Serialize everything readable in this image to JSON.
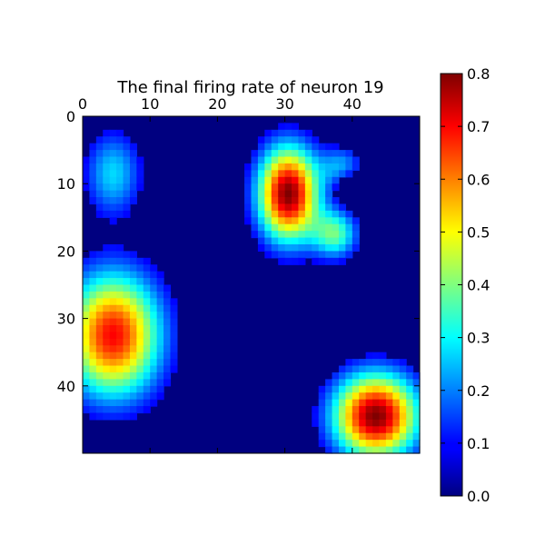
{
  "chart_data": {
    "type": "heatmap",
    "title": "The final firing rate of neuron 19",
    "xlabel": "",
    "ylabel": "",
    "grid_size": [
      50,
      50
    ],
    "x_ticks": [
      0,
      10,
      20,
      30,
      40
    ],
    "y_ticks": [
      0,
      10,
      20,
      30,
      40
    ],
    "x_axis_position": "top",
    "y_axis_inverted": true,
    "colormap": "jet",
    "colorbar": {
      "range": [
        0.0,
        0.8
      ],
      "ticks": [
        "0.0",
        "0.1",
        "0.2",
        "0.3",
        "0.4",
        "0.5",
        "0.6",
        "0.7",
        "0.8"
      ]
    },
    "blobs": [
      {
        "cx": 30,
        "cy": 11,
        "sx": 3.2,
        "sy": 5.0,
        "peak": 0.8
      },
      {
        "cx": 37,
        "cy": 17,
        "sx": 2.4,
        "sy": 2.6,
        "peak": 0.36
      },
      {
        "cx": 38,
        "cy": 7,
        "sx": 2.2,
        "sy": 2.2,
        "peak": 0.22
      },
      {
        "cx": 4,
        "cy": 8,
        "sx": 3.0,
        "sy": 4.5,
        "peak": 0.27
      },
      {
        "cx": 4,
        "cy": 32,
        "sx": 5.0,
        "sy": 6.5,
        "peak": 0.7
      },
      {
        "cx": 43,
        "cy": 44,
        "sx": 4.5,
        "sy": 4.5,
        "peak": 0.8
      }
    ],
    "hole": {
      "cx": 39,
      "cy": 10,
      "sx": 1.4,
      "sy": 1.6,
      "depth": 0.14
    }
  }
}
